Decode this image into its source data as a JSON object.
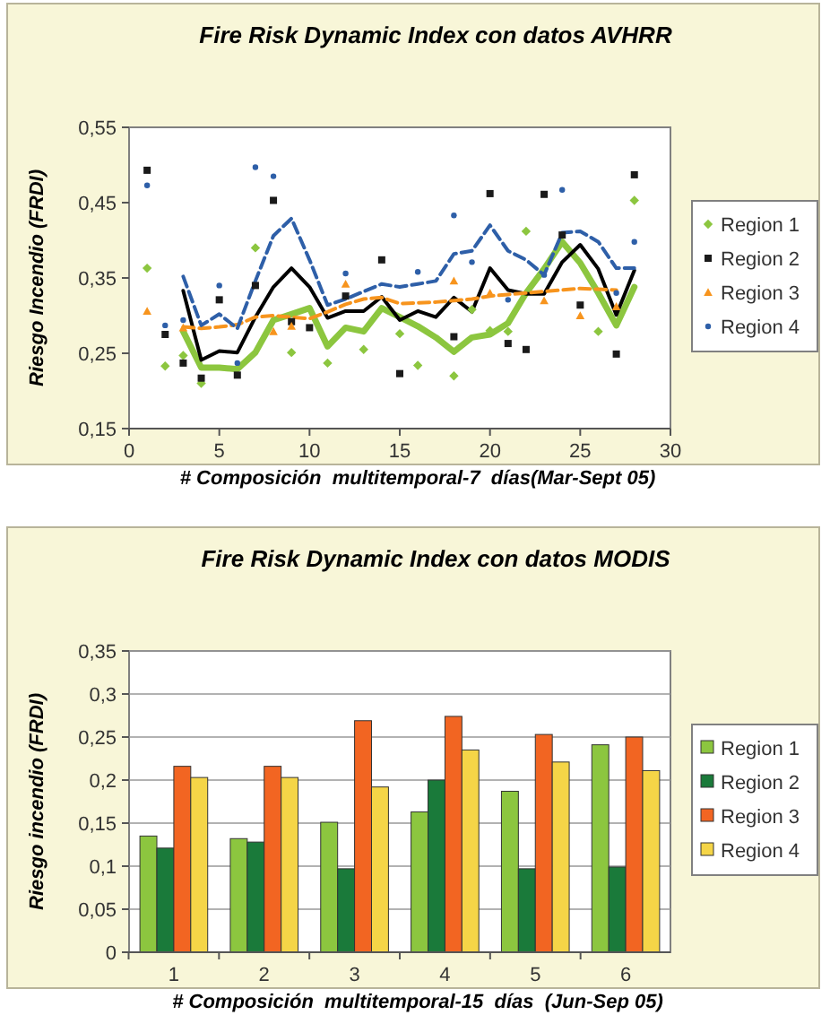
{
  "chart_data": [
    {
      "type": "scatter",
      "title": "Fire Risk Dynamic Index con datos AVHRR",
      "xlabel": "# Composición  multitemporal-7  días(Mar-Sept 05)",
      "ylabel": "Riesgo Incendio (FRDI)",
      "xlim": [
        0,
        30
      ],
      "xticks": [
        0,
        5,
        10,
        15,
        20,
        25,
        30
      ],
      "ylim": [
        0.15,
        0.55
      ],
      "yticks": [
        {
          "value": 0.15,
          "label": "0,15"
        },
        {
          "value": 0.25,
          "label": "0,25"
        },
        {
          "value": 0.35,
          "label": "0,35"
        },
        {
          "value": 0.45,
          "label": "0,45"
        },
        {
          "value": 0.55,
          "label": "0,55"
        }
      ],
      "legend": "right",
      "grid": false,
      "series": [
        {
          "name": "Region 1",
          "type": "scatter",
          "marker": "diamond",
          "color": "#8cc63f",
          "x": [
            1,
            2,
            3,
            4,
            7,
            9,
            11,
            13,
            15,
            16,
            18,
            19,
            20,
            21,
            22,
            26,
            28
          ],
          "values": [
            0.363,
            0.233,
            0.247,
            0.21,
            0.39,
            0.251,
            0.237,
            0.255,
            0.276,
            0.234,
            0.22,
            0.308,
            0.28,
            0.279,
            0.412,
            0.279,
            0.453
          ]
        },
        {
          "name": "Region 2",
          "type": "scatter",
          "marker": "square",
          "color": "#1a1a1a",
          "x": [
            1,
            2,
            3,
            4,
            5,
            6,
            7,
            8,
            9,
            10,
            12,
            14,
            15,
            18,
            20,
            21,
            22,
            23,
            24,
            25,
            27,
            28
          ],
          "values": [
            0.493,
            0.275,
            0.237,
            0.217,
            0.321,
            0.221,
            0.34,
            0.453,
            0.292,
            0.284,
            0.326,
            0.374,
            0.223,
            0.272,
            0.462,
            0.263,
            0.255,
            0.461,
            0.407,
            0.314,
            0.249,
            0.487
          ]
        },
        {
          "name": "Region 3",
          "type": "scatter",
          "marker": "triangle",
          "color": "#f7941d",
          "x": [
            1,
            3,
            8,
            9,
            12,
            18,
            20,
            23,
            25,
            27
          ],
          "values": [
            0.306,
            0.284,
            0.279,
            0.286,
            0.342,
            0.346,
            0.33,
            0.32,
            0.3,
            0.312
          ]
        },
        {
          "name": "Region 4",
          "type": "scatter",
          "marker": "circle",
          "color": "#2e5fa8",
          "x": [
            1,
            2,
            3,
            5,
            6,
            7,
            8,
            12,
            16,
            18,
            19,
            21,
            23,
            24,
            27,
            28
          ],
          "values": [
            0.473,
            0.287,
            0.294,
            0.34,
            0.237,
            0.497,
            0.485,
            0.356,
            0.358,
            0.433,
            0.371,
            0.321,
            0.354,
            0.467,
            0.33,
            0.398
          ]
        },
        {
          "type": "line",
          "color": "#8cc63f",
          "line_style": "solid",
          "x": [
            3,
            4,
            5,
            6,
            7,
            8,
            9,
            10,
            11,
            12,
            13,
            14,
            15,
            16,
            17,
            18,
            19,
            20,
            21,
            22,
            23,
            24,
            25,
            26,
            27,
            28
          ],
          "values": [
            0.279,
            0.231,
            0.231,
            0.229,
            0.251,
            0.294,
            0.302,
            0.31,
            0.259,
            0.284,
            0.279,
            0.31,
            0.298,
            0.286,
            0.271,
            0.252,
            0.271,
            0.275,
            0.29,
            0.33,
            0.362,
            0.398,
            0.37,
            0.33,
            0.287,
            0.338
          ]
        },
        {
          "type": "line",
          "color": "#000000",
          "line_style": "solid",
          "x": [
            3,
            4,
            5,
            6,
            7,
            8,
            9,
            10,
            11,
            12,
            13,
            14,
            15,
            16,
            17,
            18,
            19,
            20,
            21,
            22,
            23,
            24,
            25,
            26,
            27,
            28
          ],
          "values": [
            0.333,
            0.241,
            0.253,
            0.251,
            0.298,
            0.338,
            0.363,
            0.338,
            0.297,
            0.306,
            0.306,
            0.325,
            0.294,
            0.306,
            0.298,
            0.324,
            0.305,
            0.363,
            0.334,
            0.329,
            0.329,
            0.371,
            0.394,
            0.362,
            0.301,
            0.36
          ]
        },
        {
          "type": "line",
          "color": "#f7941d",
          "line_style": "dashed",
          "x": [
            3,
            4,
            5,
            6,
            7,
            8,
            9,
            10,
            11,
            12,
            13,
            14,
            15,
            16,
            17,
            18,
            19,
            20,
            21,
            22,
            23,
            24,
            25,
            26,
            27
          ],
          "values": [
            0.285,
            0.283,
            0.285,
            0.288,
            0.298,
            0.3,
            0.298,
            0.296,
            0.305,
            0.315,
            0.322,
            0.324,
            0.316,
            0.317,
            0.318,
            0.32,
            0.322,
            0.326,
            0.328,
            0.33,
            0.332,
            0.334,
            0.336,
            0.335,
            0.334
          ]
        },
        {
          "type": "line",
          "color": "#2e5fa8",
          "line_style": "dashed",
          "x": [
            3,
            4,
            5,
            6,
            7,
            8,
            9,
            10,
            11,
            12,
            13,
            14,
            15,
            16,
            17,
            18,
            19,
            20,
            21,
            22,
            23,
            24,
            25,
            26,
            27,
            28
          ],
          "values": [
            0.352,
            0.287,
            0.302,
            0.283,
            0.346,
            0.406,
            0.429,
            0.374,
            0.314,
            0.322,
            0.332,
            0.342,
            0.338,
            0.342,
            0.346,
            0.382,
            0.386,
            0.42,
            0.386,
            0.374,
            0.354,
            0.41,
            0.412,
            0.398,
            0.363,
            0.363
          ]
        }
      ]
    },
    {
      "type": "bar",
      "title": "Fire Risk Dynamic Index con datos MODIS",
      "xlabel": "# Composición  multitemporal-15  días  (Jun-Sep 05)",
      "ylabel": "Riesgo incendio (FRDI)",
      "categories": [
        "1",
        "2",
        "3",
        "4",
        "5",
        "6"
      ],
      "ylim": [
        0,
        0.35
      ],
      "yticks": [
        0,
        {
          "value": 0.05,
          "label": "0,05"
        },
        {
          "value": 0.1,
          "label": "0,1"
        },
        {
          "value": 0.15,
          "label": "0,15"
        },
        {
          "value": 0.2,
          "label": "0,2"
        },
        {
          "value": 0.25,
          "label": "0,25"
        },
        {
          "value": 0.3,
          "label": "0,3"
        },
        {
          "value": 0.35,
          "label": "0,35"
        }
      ],
      "legend": "right",
      "grid": "y",
      "series": [
        {
          "name": "Region 1",
          "color": "#8cc63f",
          "values": [
            0.135,
            0.132,
            0.151,
            0.163,
            0.187,
            0.241
          ]
        },
        {
          "name": "Region 2",
          "color": "#1a7a3a",
          "values": [
            0.121,
            0.128,
            0.097,
            0.2,
            0.097,
            0.099
          ]
        },
        {
          "name": "Region 3",
          "color": "#f26522",
          "values": [
            0.216,
            0.216,
            0.269,
            0.274,
            0.253,
            0.25
          ]
        },
        {
          "name": "Region 4",
          "color": "#f5d547",
          "values": [
            0.203,
            0.203,
            0.192,
            0.235,
            0.221,
            0.211
          ]
        }
      ]
    }
  ]
}
